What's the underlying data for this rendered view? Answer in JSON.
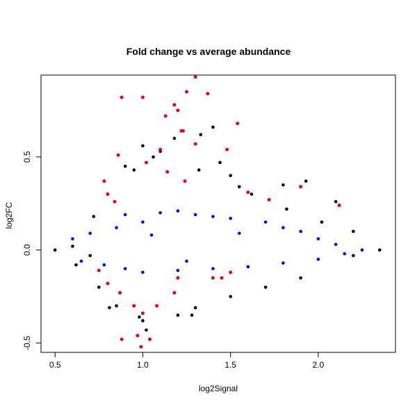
{
  "chart_data": {
    "type": "scatter",
    "title": "Fold change vs average abundance",
    "xlabel": "log2Signal",
    "ylabel": "log2FC",
    "xlim": [
      0.42,
      2.44
    ],
    "ylim": [
      -0.55,
      0.94
    ],
    "x_ticks": [
      0.5,
      1.0,
      1.5,
      2.0
    ],
    "x_tick_labels": [
      "0.5",
      "1.0",
      "1.5",
      "2.0"
    ],
    "y_ticks": [
      -0.5,
      0.0,
      0.5
    ],
    "y_tick_labels": [
      "-0.5",
      "0.0",
      "0.5"
    ],
    "grid": false,
    "legend": "none",
    "series": [
      {
        "color": "#000000",
        "points": [
          [
            0.5,
            0.0
          ],
          [
            0.6,
            0.02
          ],
          [
            0.7,
            -0.03
          ],
          [
            0.9,
            0.45
          ],
          [
            0.95,
            0.43
          ],
          [
            1.0,
            0.56
          ],
          [
            1.06,
            0.5
          ],
          [
            1.1,
            0.53
          ],
          [
            1.18,
            0.6
          ],
          [
            1.4,
            0.66
          ],
          [
            1.33,
            0.62
          ],
          [
            1.32,
            0.43
          ],
          [
            1.5,
            0.4
          ],
          [
            1.55,
            0.34
          ],
          [
            1.8,
            0.35
          ],
          [
            1.93,
            0.37
          ],
          [
            2.1,
            0.26
          ],
          [
            2.2,
            0.1
          ],
          [
            2.35,
            0.0
          ],
          [
            2.2,
            -0.03
          ],
          [
            1.9,
            -0.15
          ],
          [
            1.7,
            -0.2
          ],
          [
            1.5,
            -0.25
          ],
          [
            1.3,
            -0.31
          ],
          [
            1.2,
            -0.35
          ],
          [
            1.0,
            -0.38
          ],
          [
            1.02,
            -0.43
          ],
          [
            0.98,
            -0.36
          ],
          [
            0.85,
            -0.3
          ],
          [
            0.75,
            -0.2
          ],
          [
            0.62,
            -0.08
          ],
          [
            0.72,
            0.18
          ],
          [
            1.44,
            0.47
          ],
          [
            1.28,
            -0.35
          ],
          [
            1.82,
            0.22
          ],
          [
            2.02,
            0.15
          ],
          [
            1.62,
            0.3
          ],
          [
            0.81,
            -0.31
          ]
        ]
      },
      {
        "color": "#0000ff",
        "points": [
          [
            0.6,
            0.06
          ],
          [
            0.65,
            -0.06
          ],
          [
            0.7,
            0.09
          ],
          [
            0.78,
            -0.08
          ],
          [
            0.85,
            0.12
          ],
          [
            0.9,
            0.19
          ],
          [
            1.0,
            0.15
          ],
          [
            1.1,
            0.2
          ],
          [
            1.2,
            0.21
          ],
          [
            1.3,
            0.19
          ],
          [
            1.4,
            0.18
          ],
          [
            1.5,
            0.17
          ],
          [
            1.7,
            0.15
          ],
          [
            1.8,
            0.12
          ],
          [
            1.9,
            0.1
          ],
          [
            2.0,
            0.06
          ],
          [
            2.1,
            0.03
          ],
          [
            2.25,
            0.0
          ],
          [
            0.9,
            -0.1
          ],
          [
            1.0,
            -0.12
          ],
          [
            1.2,
            -0.11
          ],
          [
            1.4,
            -0.1
          ],
          [
            1.6,
            -0.09
          ],
          [
            1.8,
            -0.07
          ],
          [
            2.0,
            -0.05
          ],
          [
            2.15,
            -0.02
          ],
          [
            1.25,
            -0.06
          ],
          [
            1.05,
            0.08
          ],
          [
            1.55,
            0.09
          ]
        ]
      },
      {
        "color": "#e8001c",
        "points": [
          [
            0.88,
            0.82
          ],
          [
            1.0,
            0.82
          ],
          [
            1.13,
            0.72
          ],
          [
            1.18,
            0.78
          ],
          [
            1.2,
            0.75
          ],
          [
            1.22,
            0.64
          ],
          [
            1.25,
            0.85
          ],
          [
            1.3,
            0.93
          ],
          [
            1.37,
            0.84
          ],
          [
            1.54,
            0.68
          ],
          [
            1.23,
            0.64
          ],
          [
            1.3,
            0.57
          ],
          [
            0.86,
            0.51
          ],
          [
            1.1,
            0.54
          ],
          [
            1.02,
            0.47
          ],
          [
            1.14,
            0.42
          ],
          [
            1.48,
            0.54
          ],
          [
            0.78,
            0.37
          ],
          [
            0.8,
            0.3
          ],
          [
            0.84,
            0.26
          ],
          [
            1.24,
            0.37
          ],
          [
            1.6,
            0.31
          ],
          [
            2.12,
            0.24
          ],
          [
            1.9,
            0.34
          ],
          [
            1.72,
            0.27
          ],
          [
            0.75,
            -0.11
          ],
          [
            0.8,
            -0.18
          ],
          [
            0.87,
            -0.23
          ],
          [
            0.95,
            -0.3
          ],
          [
            1.0,
            -0.34
          ],
          [
            1.08,
            -0.3
          ],
          [
            1.18,
            -0.23
          ],
          [
            0.88,
            -0.48
          ],
          [
            0.97,
            -0.46
          ],
          [
            0.99,
            -0.52
          ],
          [
            1.04,
            -0.48
          ],
          [
            1.2,
            -0.15
          ],
          [
            1.4,
            -0.15
          ],
          [
            1.45,
            -0.15
          ],
          [
            1.5,
            -0.12
          ]
        ]
      }
    ]
  }
}
